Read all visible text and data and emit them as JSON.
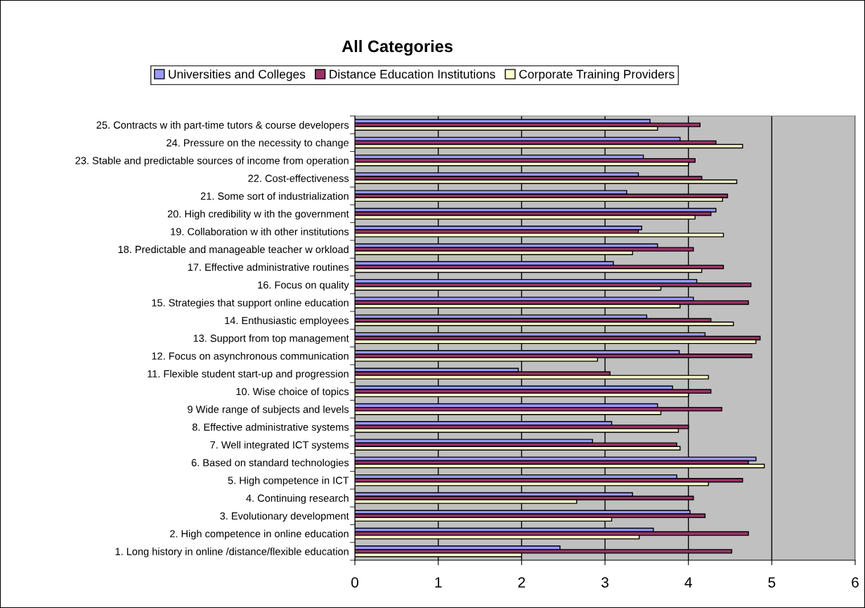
{
  "chart_data": {
    "type": "bar",
    "orientation": "horizontal",
    "title": "All Categories",
    "categories": [
      "25. Contracts w ith part-time tutors & course developers",
      "24. Pressure on the necessity to change",
      "23. Stable and predictable sources of income from operation",
      "22. Cost-effectiveness",
      "21. Some sort of industrialization",
      "20. High credibility w ith the government",
      "19. Collaboration w ith other institutions",
      "18. Predictable and manageable teacher w orkload",
      "17. Effective administrative routines",
      "16. Focus on quality",
      "15. Strategies that support online education",
      "14. Enthusiastic employees",
      "13. Support from top management",
      "12. Focus on asynchronous communication",
      "11. Flexible student start-up and progression",
      "10. Wise choice of topics",
      "9 Wide range of subjects and levels",
      "8. Effective administrative systems",
      "7. Well integrated ICT systems",
      "6. Based on standard technologies",
      "5. High competence in ICT",
      "4. Continuing research",
      "3. Evolutionary development",
      "2. High competence in online education",
      "1. Long history in online /distance/flexible education"
    ],
    "series": [
      {
        "name": "Universities and Colleges",
        "color": "#9999ff",
        "values": [
          3.54,
          3.9,
          3.46,
          3.4,
          3.26,
          4.33,
          3.44,
          3.63,
          3.1,
          4.1,
          4.06,
          3.5,
          4.2,
          3.89,
          1.96,
          3.81,
          3.63,
          3.08,
          2.85,
          4.81,
          3.86,
          3.33,
          4.02,
          3.58,
          2.46
        ]
      },
      {
        "name": "Distance Education Institutions",
        "color": "#993366",
        "values": [
          4.14,
          4.33,
          4.08,
          4.16,
          4.47,
          4.27,
          3.4,
          4.06,
          4.42,
          4.75,
          4.72,
          4.27,
          4.86,
          4.76,
          3.06,
          4.27,
          4.4,
          4.0,
          3.86,
          4.72,
          4.65,
          4.06,
          4.2,
          4.72,
          4.52
        ]
      },
      {
        "name": "Corporate Training Providers",
        "color": "#ffffcc",
        "values": [
          3.63,
          4.65,
          4.0,
          4.58,
          4.41,
          4.08,
          4.42,
          3.33,
          4.16,
          3.67,
          3.9,
          4.54,
          4.81,
          2.91,
          4.24,
          4.0,
          3.67,
          3.88,
          3.9,
          4.91,
          4.24,
          2.66,
          3.08,
          3.41,
          2.0
        ]
      }
    ],
    "xlim": [
      0,
      6
    ],
    "xticks": [
      0,
      1,
      2,
      3,
      4,
      5,
      6
    ],
    "grid": "x",
    "legend": "top"
  }
}
